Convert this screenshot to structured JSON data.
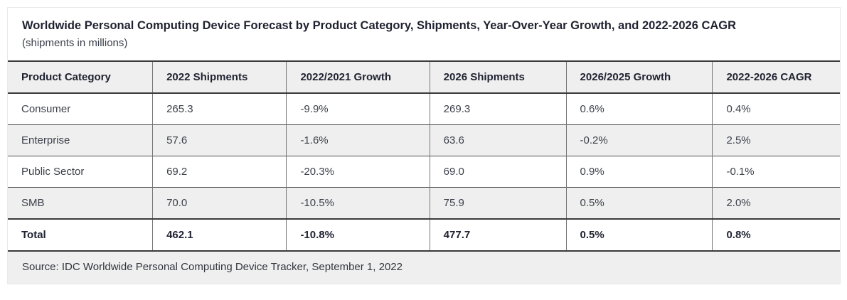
{
  "header": {
    "title": "Worldwide Personal Computing Device Forecast by Product Category, Shipments, Year-Over-Year Growth, and 2022-2026 CAGR",
    "subtitle": "(shipments in millions)"
  },
  "chart_data": {
    "type": "table",
    "columns": [
      "Product Category",
      "2022 Shipments",
      "2022/2021 Growth",
      "2026 Shipments",
      "2026/2025 Growth",
      "2022-2026 CAGR"
    ],
    "rows": [
      [
        "Consumer",
        "265.3",
        "-9.9%",
        "269.3",
        "0.6%",
        "0.4%"
      ],
      [
        "Enterprise",
        "57.6",
        "-1.6%",
        "63.6",
        "-0.2%",
        "2.5%"
      ],
      [
        "Public Sector",
        "69.2",
        "-20.3%",
        "69.0",
        "0.9%",
        "-0.1%"
      ],
      [
        "SMB",
        "70.0",
        "-10.5%",
        "75.9",
        "0.5%",
        "2.0%"
      ]
    ],
    "total_row": [
      "Total",
      "462.1",
      "-10.8%",
      "477.7",
      "0.5%",
      "0.8%"
    ],
    "title": "Worldwide Personal Computing Device Forecast by Product Category, Shipments, Year-Over-Year Growth, and 2022-2026 CAGR",
    "units_note": "(shipments in millions)",
    "layout_hints": {
      "zebra_striping": true,
      "total_row_bold": true
    }
  },
  "footer": {
    "source": "Source: IDC Worldwide Personal Computing Device Tracker, September 1, 2022"
  },
  "colors": {
    "row_alt_background": "#efefef",
    "strong_border": "#3a3a3a",
    "column_border": "#757575",
    "title_text": "#1f2230",
    "body_text": "#3b3f4a"
  }
}
